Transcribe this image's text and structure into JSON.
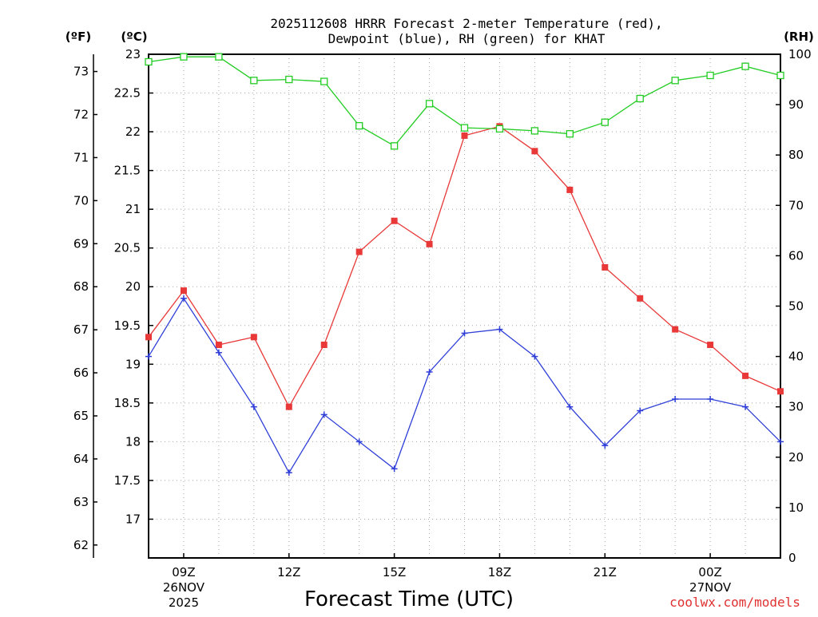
{
  "chart_data": {
    "type": "line",
    "title_line1": "2025112608 HRRR Forecast 2-meter Temperature (red),",
    "title_line2": "Dewpoint (blue), RH (green) for KHAT",
    "xlabel": "Forecast Time (UTC)",
    "credit": "coolwx.com/models",
    "units": {
      "fahrenheit": "(ºF)",
      "celsius": "(ºC)",
      "rh": "(RH)"
    },
    "x_hours": [
      8,
      9,
      10,
      11,
      12,
      13,
      14,
      15,
      16,
      17,
      18,
      19,
      20,
      21,
      22,
      23,
      24,
      25,
      26
    ],
    "x_ticks": [
      {
        "hour": 9,
        "line1": "09Z",
        "line2": "26NOV",
        "line3": "2025"
      },
      {
        "hour": 12,
        "line1": "12Z",
        "line2": "",
        "line3": ""
      },
      {
        "hour": 15,
        "line1": "15Z",
        "line2": "",
        "line3": ""
      },
      {
        "hour": 18,
        "line1": "18Z",
        "line2": "",
        "line3": ""
      },
      {
        "hour": 21,
        "line1": "21Z",
        "line2": "",
        "line3": ""
      },
      {
        "hour": 24,
        "line1": "00Z",
        "line2": "27NOV",
        "line3": ""
      }
    ],
    "xlim": [
      8,
      26
    ],
    "celsius_ticks": [
      "17",
      "17.5",
      "18",
      "18.5",
      "19",
      "19.5",
      "20",
      "20.5",
      "21",
      "21.5",
      "22",
      "22.5",
      "23"
    ],
    "celsius_lim": [
      16.5,
      23
    ],
    "fahrenheit_ticks": [
      "62",
      "63",
      "64",
      "65",
      "66",
      "67",
      "68",
      "69",
      "70",
      "71",
      "72",
      "73"
    ],
    "rh_ticks": [
      "0",
      "10",
      "20",
      "30",
      "40",
      "50",
      "60",
      "70",
      "80",
      "90",
      "100"
    ],
    "rh_lim": [
      0,
      100
    ],
    "grid": true,
    "series": [
      {
        "name": "2-meter Temperature",
        "color": "#e83838",
        "marker": "filled-square",
        "axis": "celsius",
        "values": [
          19.35,
          19.95,
          19.25,
          19.35,
          18.45,
          19.25,
          20.45,
          20.85,
          20.55,
          21.95,
          22.07,
          21.75,
          21.25,
          20.25,
          19.85,
          19.45,
          19.25,
          18.85,
          18.65
        ]
      },
      {
        "name": "Dewpoint",
        "color": "#2f3fd8",
        "marker": "plus",
        "axis": "celsius",
        "values": [
          19.1,
          19.85,
          19.15,
          18.45,
          17.6,
          18.35,
          18.0,
          17.65,
          18.9,
          19.4,
          19.45,
          19.1,
          18.45,
          17.95,
          18.4,
          18.55,
          18.55,
          18.45,
          18.0
        ]
      },
      {
        "name": "RH",
        "color": "#22cc22",
        "marker": "open-square",
        "axis": "rh",
        "values": [
          98.5,
          99.5,
          99.5,
          94.8,
          95.0,
          94.6,
          85.8,
          81.8,
          90.2,
          85.4,
          85.2,
          84.8,
          84.2,
          86.5,
          91.2,
          94.8,
          95.8,
          97.6,
          95.8
        ]
      }
    ]
  }
}
